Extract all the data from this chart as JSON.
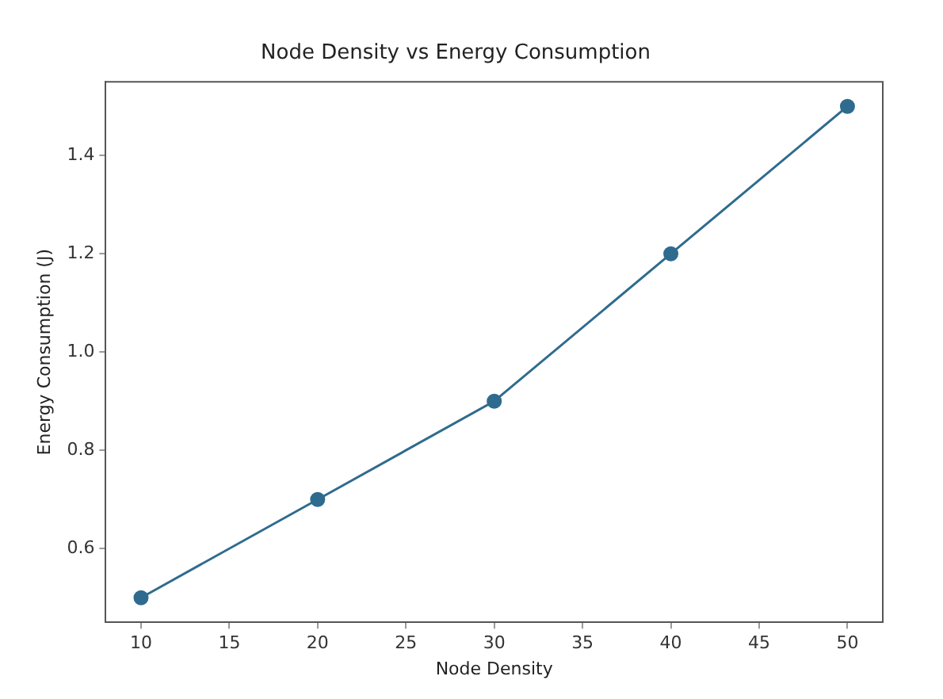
{
  "chart_data": {
    "type": "line",
    "title": "Node Density vs Energy Consumption",
    "xlabel": "Node Density",
    "ylabel": "Energy Consumption (J)",
    "x": [
      10,
      20,
      30,
      40,
      50
    ],
    "series": [
      {
        "color": "#2f6b8e",
        "values": [
          0.5,
          0.7,
          0.9,
          1.2,
          1.5
        ]
      }
    ],
    "xlim": [
      8,
      52
    ],
    "xticks": [
      10,
      15,
      20,
      25,
      30,
      35,
      40,
      45,
      50
    ],
    "ylim": [
      0.45,
      1.55
    ],
    "yticks": [
      0.6,
      0.8,
      {
        "value": 1,
        "label": "1.0"
      },
      1.2,
      1.4
    ],
    "grid": false,
    "legend": false,
    "marker": "circle",
    "line_style": "solid"
  }
}
